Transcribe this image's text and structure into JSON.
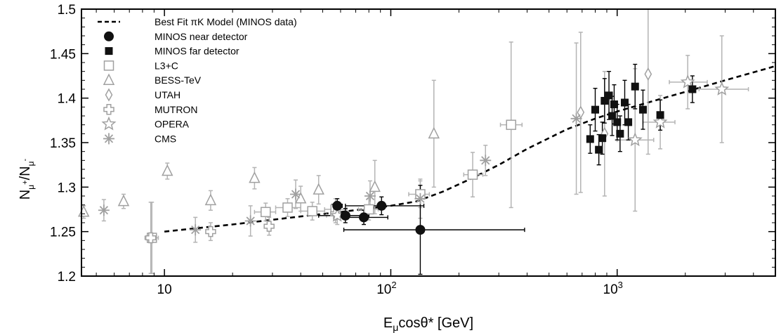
{
  "chart_data": {
    "type": "scatter",
    "x_scale": "log",
    "xlim": [
      4.3,
      5000
    ],
    "ylim": [
      1.2,
      1.5
    ],
    "xlabel_main": "E",
    "xlabel_sub": "μ",
    "xlabel_rest": "cosθ* [GeV]",
    "ylabel_main": "N",
    "ylabel_sub1": "μ",
    "ylabel_sup1": "+",
    "ylabel_mid": "/N",
    "ylabel_sub2": "μ",
    "ylabel_sup2": "-",
    "y_ticks": [
      "1.2",
      "1.25",
      "1.3",
      "1.35",
      "1.4",
      "1.45",
      "1.5"
    ],
    "x_ticks": [
      {
        "base": "10",
        "exp": ""
      },
      {
        "base": "10",
        "exp": "2"
      },
      {
        "base": "10",
        "exp": "3"
      }
    ],
    "legend_position": "top-left",
    "legend": [
      {
        "key": "model",
        "label": "Best Fit πK Model (MINOS data)"
      },
      {
        "key": "near",
        "label": "MINOS near detector"
      },
      {
        "key": "far",
        "label": "MINOS far detector"
      },
      {
        "key": "l3c",
        "label": "L3+C"
      },
      {
        "key": "bess",
        "label": "BESS-TeV"
      },
      {
        "key": "utah",
        "label": "UTAH"
      },
      {
        "key": "mutron",
        "label": "MUTRON"
      },
      {
        "key": "opera",
        "label": "OPERA"
      },
      {
        "key": "cms",
        "label": "CMS"
      }
    ],
    "model_curve": [
      [
        10,
        1.25
      ],
      [
        20,
        1.258
      ],
      [
        40,
        1.267
      ],
      [
        60,
        1.272
      ],
      [
        80,
        1.276
      ],
      [
        100,
        1.279
      ],
      [
        130,
        1.284
      ],
      [
        170,
        1.295
      ],
      [
        220,
        1.308
      ],
      [
        300,
        1.325
      ],
      [
        400,
        1.343
      ],
      [
        600,
        1.365
      ],
      [
        800,
        1.377
      ],
      [
        1000,
        1.385
      ],
      [
        1500,
        1.398
      ],
      [
        2000,
        1.407
      ],
      [
        3000,
        1.42
      ],
      [
        5000,
        1.436
      ]
    ],
    "series": [
      {
        "key": "near",
        "points": [
          {
            "x": 58,
            "y": 1.279,
            "err": 0.008,
            "xlo": 55,
            "xhi": 61
          },
          {
            "x": 63,
            "y": 1.268,
            "err": 0.008,
            "xlo": 48,
            "xhi": 80
          },
          {
            "x": 76,
            "y": 1.266,
            "err": 0.008,
            "xlo": 56,
            "xhi": 97
          },
          {
            "x": 91,
            "y": 1.279,
            "err": 0.01,
            "xlo": 63,
            "xhi": 140
          },
          {
            "x": 135,
            "y": 1.252,
            "err": 0.05,
            "xlo": 62,
            "xhi": 390
          }
        ]
      },
      {
        "key": "far",
        "points": [
          {
            "x": 760,
            "y": 1.354,
            "err": 0.016
          },
          {
            "x": 800,
            "y": 1.387,
            "err": 0.024
          },
          {
            "x": 830,
            "y": 1.342,
            "err": 0.017
          },
          {
            "x": 860,
            "y": 1.355,
            "err": 0.018
          },
          {
            "x": 880,
            "y": 1.397,
            "err": 0.025
          },
          {
            "x": 920,
            "y": 1.403,
            "err": 0.027
          },
          {
            "x": 950,
            "y": 1.38,
            "err": 0.022
          },
          {
            "x": 970,
            "y": 1.393,
            "err": 0.022
          },
          {
            "x": 1000,
            "y": 1.373,
            "err": 0.02
          },
          {
            "x": 1030,
            "y": 1.36,
            "err": 0.02
          },
          {
            "x": 1080,
            "y": 1.395,
            "err": 0.025
          },
          {
            "x": 1120,
            "y": 1.373,
            "err": 0.02
          },
          {
            "x": 1200,
            "y": 1.413,
            "err": 0.025
          },
          {
            "x": 1300,
            "y": 1.387,
            "err": 0.022
          },
          {
            "x": 1550,
            "y": 1.381,
            "err": 0.017
          },
          {
            "x": 2150,
            "y": 1.41,
            "err": 0.015
          }
        ]
      },
      {
        "key": "l3c",
        "points": [
          {
            "x": 8.8,
            "y": 1.243,
            "err": 0.04,
            "xlo": 8.2,
            "xhi": 9.4
          },
          {
            "x": 28,
            "y": 1.272,
            "err": 0.01,
            "xlo": 25,
            "xhi": 31
          },
          {
            "x": 35,
            "y": 1.277,
            "err": 0.01,
            "xlo": 31,
            "xhi": 40
          },
          {
            "x": 45,
            "y": 1.273,
            "err": 0.01,
            "xlo": 40,
            "xhi": 51
          },
          {
            "x": 57,
            "y": 1.275,
            "err": 0.012,
            "xlo": 51,
            "xhi": 64
          },
          {
            "x": 80,
            "y": 1.275,
            "err": 0.012,
            "xlo": 72,
            "xhi": 88
          },
          {
            "x": 135,
            "y": 1.292,
            "err": 0.015,
            "xlo": 120,
            "xhi": 148
          },
          {
            "x": 230,
            "y": 1.314,
            "err": 0.025,
            "xlo": 210,
            "xhi": 255
          },
          {
            "x": 340,
            "y": 1.37,
            "err": 0.093,
            "xlo": 305,
            "xhi": 380
          }
        ]
      },
      {
        "key": "bess",
        "points": [
          {
            "x": 4.4,
            "y": 1.272,
            "err": 0.007
          },
          {
            "x": 6.6,
            "y": 1.284,
            "err": 0.008
          },
          {
            "x": 10.3,
            "y": 1.318,
            "err": 0.009
          },
          {
            "x": 16,
            "y": 1.285,
            "err": 0.011
          },
          {
            "x": 25,
            "y": 1.31,
            "err": 0.012
          },
          {
            "x": 40,
            "y": 1.287,
            "err": 0.014
          },
          {
            "x": 48,
            "y": 1.297,
            "err": 0.016
          },
          {
            "x": 85,
            "y": 1.3,
            "err": 0.03
          },
          {
            "x": 155,
            "y": 1.36,
            "err": 0.06
          }
        ]
      },
      {
        "key": "utah",
        "points": [
          {
            "x": 690,
            "y": 1.384,
            "err": 0.09
          },
          {
            "x": 880,
            "y": 1.36,
            "err": 0.07
          },
          {
            "x": 1370,
            "y": 1.427,
            "err": 0.09
          }
        ]
      },
      {
        "key": "mutron",
        "points": [
          {
            "x": 8.7,
            "y": 1.243,
            "err": 0.04
          },
          {
            "x": 16,
            "y": 1.25,
            "err": 0.01
          },
          {
            "x": 29,
            "y": 1.256,
            "err": 0.01
          },
          {
            "x": 57,
            "y": 1.27,
            "err": 0.01
          }
        ]
      },
      {
        "key": "opera",
        "points": [
          {
            "x": 58,
            "y": 1.268,
            "err": 0.01,
            "xlo": 52,
            "xhi": 66
          },
          {
            "x": 1200,
            "y": 1.353,
            "err": 0.08,
            "xlo": 1000,
            "xhi": 1450
          },
          {
            "x": 1550,
            "y": 1.373,
            "err": 0.03,
            "xlo": 1300,
            "xhi": 1800
          },
          {
            "x": 2050,
            "y": 1.418,
            "err": 0.03,
            "xlo": 1700,
            "xhi": 2500
          },
          {
            "x": 2900,
            "y": 1.41,
            "err": 0.06,
            "xlo": 2300,
            "xhi": 3800
          }
        ]
      },
      {
        "key": "cms",
        "points": [
          {
            "x": 5.4,
            "y": 1.274,
            "err": 0.012
          },
          {
            "x": 13.7,
            "y": 1.252,
            "err": 0.014
          },
          {
            "x": 24,
            "y": 1.262,
            "err": 0.017
          },
          {
            "x": 38,
            "y": 1.292,
            "err": 0.016
          },
          {
            "x": 81,
            "y": 1.29,
            "err": 0.017
          },
          {
            "x": 135,
            "y": 1.287,
            "err": 0.022
          },
          {
            "x": 262,
            "y": 1.33,
            "err": 0.017
          },
          {
            "x": 660,
            "y": 1.377,
            "err": 0.085
          }
        ]
      }
    ]
  }
}
